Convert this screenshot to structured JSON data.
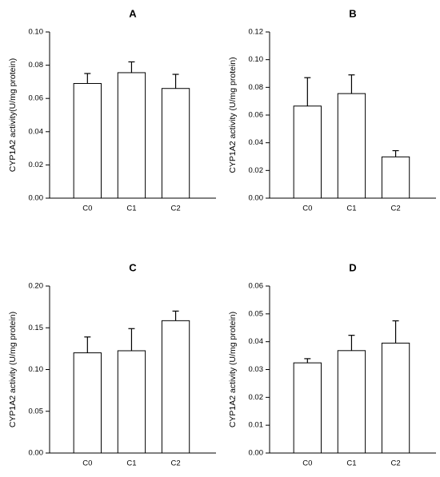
{
  "chart_data": [
    {
      "type": "bar",
      "panel": "A",
      "categories": [
        "C0",
        "C1",
        "C2"
      ],
      "values": [
        0.069,
        0.0755,
        0.066
      ],
      "errors": [
        0.006,
        0.0065,
        0.0085
      ],
      "ylabel": "CYP1A2 activity(U/mg protein)",
      "ylim": [
        0,
        0.1
      ],
      "yticks": [
        "0.00",
        "0.02",
        "0.04",
        "0.06",
        "0.08",
        "0.10"
      ],
      "grid": false
    },
    {
      "type": "bar",
      "panel": "B",
      "categories": [
        "C0",
        "C1",
        "C2"
      ],
      "values": [
        0.0665,
        0.0755,
        0.0298
      ],
      "errors": [
        0.0205,
        0.0135,
        0.0045
      ],
      "ylabel": "CYP1A2 activity (U/mg protein)",
      "ylim": [
        0,
        0.12
      ],
      "yticks": [
        "0.00",
        "0.02",
        "0.04",
        "0.06",
        "0.08",
        "0.10",
        "0.12"
      ],
      "grid": false
    },
    {
      "type": "bar",
      "panel": "C",
      "categories": [
        "C0",
        "C1",
        "C2"
      ],
      "values": [
        0.12,
        0.1225,
        0.1585
      ],
      "errors": [
        0.019,
        0.0265,
        0.0115
      ],
      "ylabel": "CYP1A2 activity (U/mg protein)",
      "ylim": [
        0,
        0.2
      ],
      "yticks": [
        "0.00",
        "0.05",
        "0.10",
        "0.15",
        "0.20"
      ],
      "grid": false
    },
    {
      "type": "bar",
      "panel": "D",
      "categories": [
        "C0",
        "C1",
        "C2"
      ],
      "values": [
        0.0324,
        0.0368,
        0.0395
      ],
      "errors": [
        0.0015,
        0.0055,
        0.008
      ],
      "ylabel": "CYP1A2 activity (U/mg protein)",
      "ylim": [
        0,
        0.06
      ],
      "yticks": [
        "0.00",
        "0.01",
        "0.02",
        "0.03",
        "0.04",
        "0.05",
        "0.06"
      ],
      "grid": false
    }
  ]
}
